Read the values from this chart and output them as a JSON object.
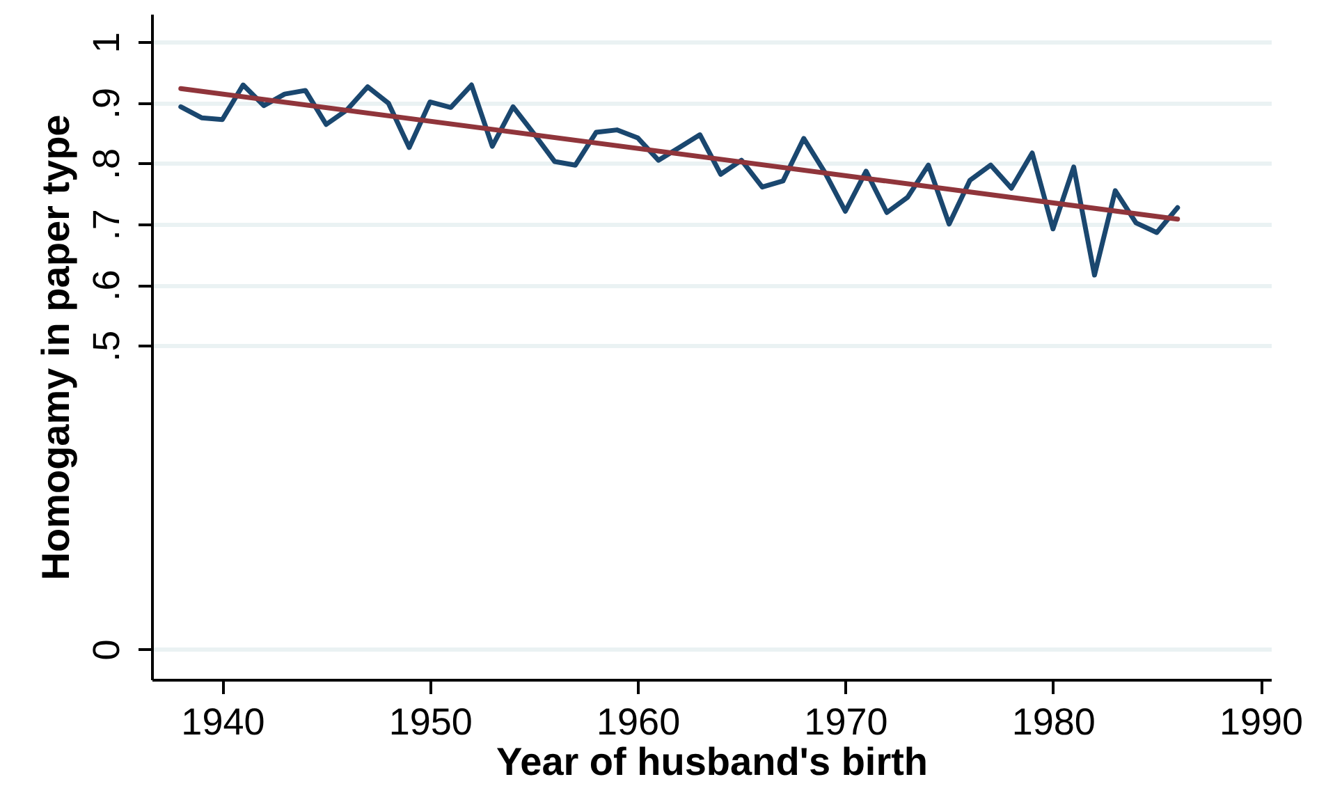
{
  "chart_data": {
    "type": "line",
    "xlabel": "Year of husband's birth",
    "ylabel": "Homogamy in paper type",
    "xlim": [
      1936.6,
      1990.5
    ],
    "xticks": [
      1940,
      1950,
      1960,
      1970,
      1980,
      1990
    ],
    "ylim": [
      -0.05,
      1.046
    ],
    "yticks": [
      0,
      {
        "value": 0.5,
        "label": ".5"
      },
      {
        "value": 0.6,
        "label": ".6"
      },
      {
        "value": 0.7,
        "label": ".7"
      },
      {
        "value": 0.8,
        "label": ".8"
      },
      {
        "value": 0.9,
        "label": ".9"
      },
      1
    ],
    "grid": "y",
    "x": [
      1938,
      1939,
      1940,
      1941,
      1942,
      1943,
      1944,
      1945,
      1946,
      1947,
      1948,
      1949,
      1950,
      1951,
      1952,
      1953,
      1954,
      1955,
      1956,
      1957,
      1958,
      1959,
      1960,
      1961,
      1962,
      1963,
      1964,
      1965,
      1966,
      1967,
      1968,
      1969,
      1970,
      1971,
      1972,
      1973,
      1974,
      1975,
      1976,
      1977,
      1978,
      1979,
      1980,
      1981,
      1982,
      1983,
      1984,
      1985,
      1986
    ],
    "series": [
      {
        "color": "#1a476f",
        "values": [
          0.893,
          0.875,
          0.872,
          0.929,
          0.895,
          0.914,
          0.92,
          0.864,
          0.888,
          0.926,
          0.899,
          0.826,
          0.901,
          0.892,
          0.929,
          0.828,
          0.893,
          0.849,
          0.803,
          0.797,
          0.851,
          0.855,
          0.842,
          0.805,
          0.826,
          0.847,
          0.782,
          0.805,
          0.761,
          0.771,
          0.841,
          0.786,
          0.721,
          0.787,
          0.719,
          0.744,
          0.797,
          0.7,
          0.772,
          0.797,
          0.759,
          0.817,
          0.692,
          0.794,
          0.616,
          0.755,
          0.702,
          0.686,
          0.727
        ]
      },
      {
        "type": "line",
        "color": "#90353b",
        "x": [
          1938,
          1986
        ],
        "values": [
          0.923,
          0.708
        ]
      }
    ]
  }
}
